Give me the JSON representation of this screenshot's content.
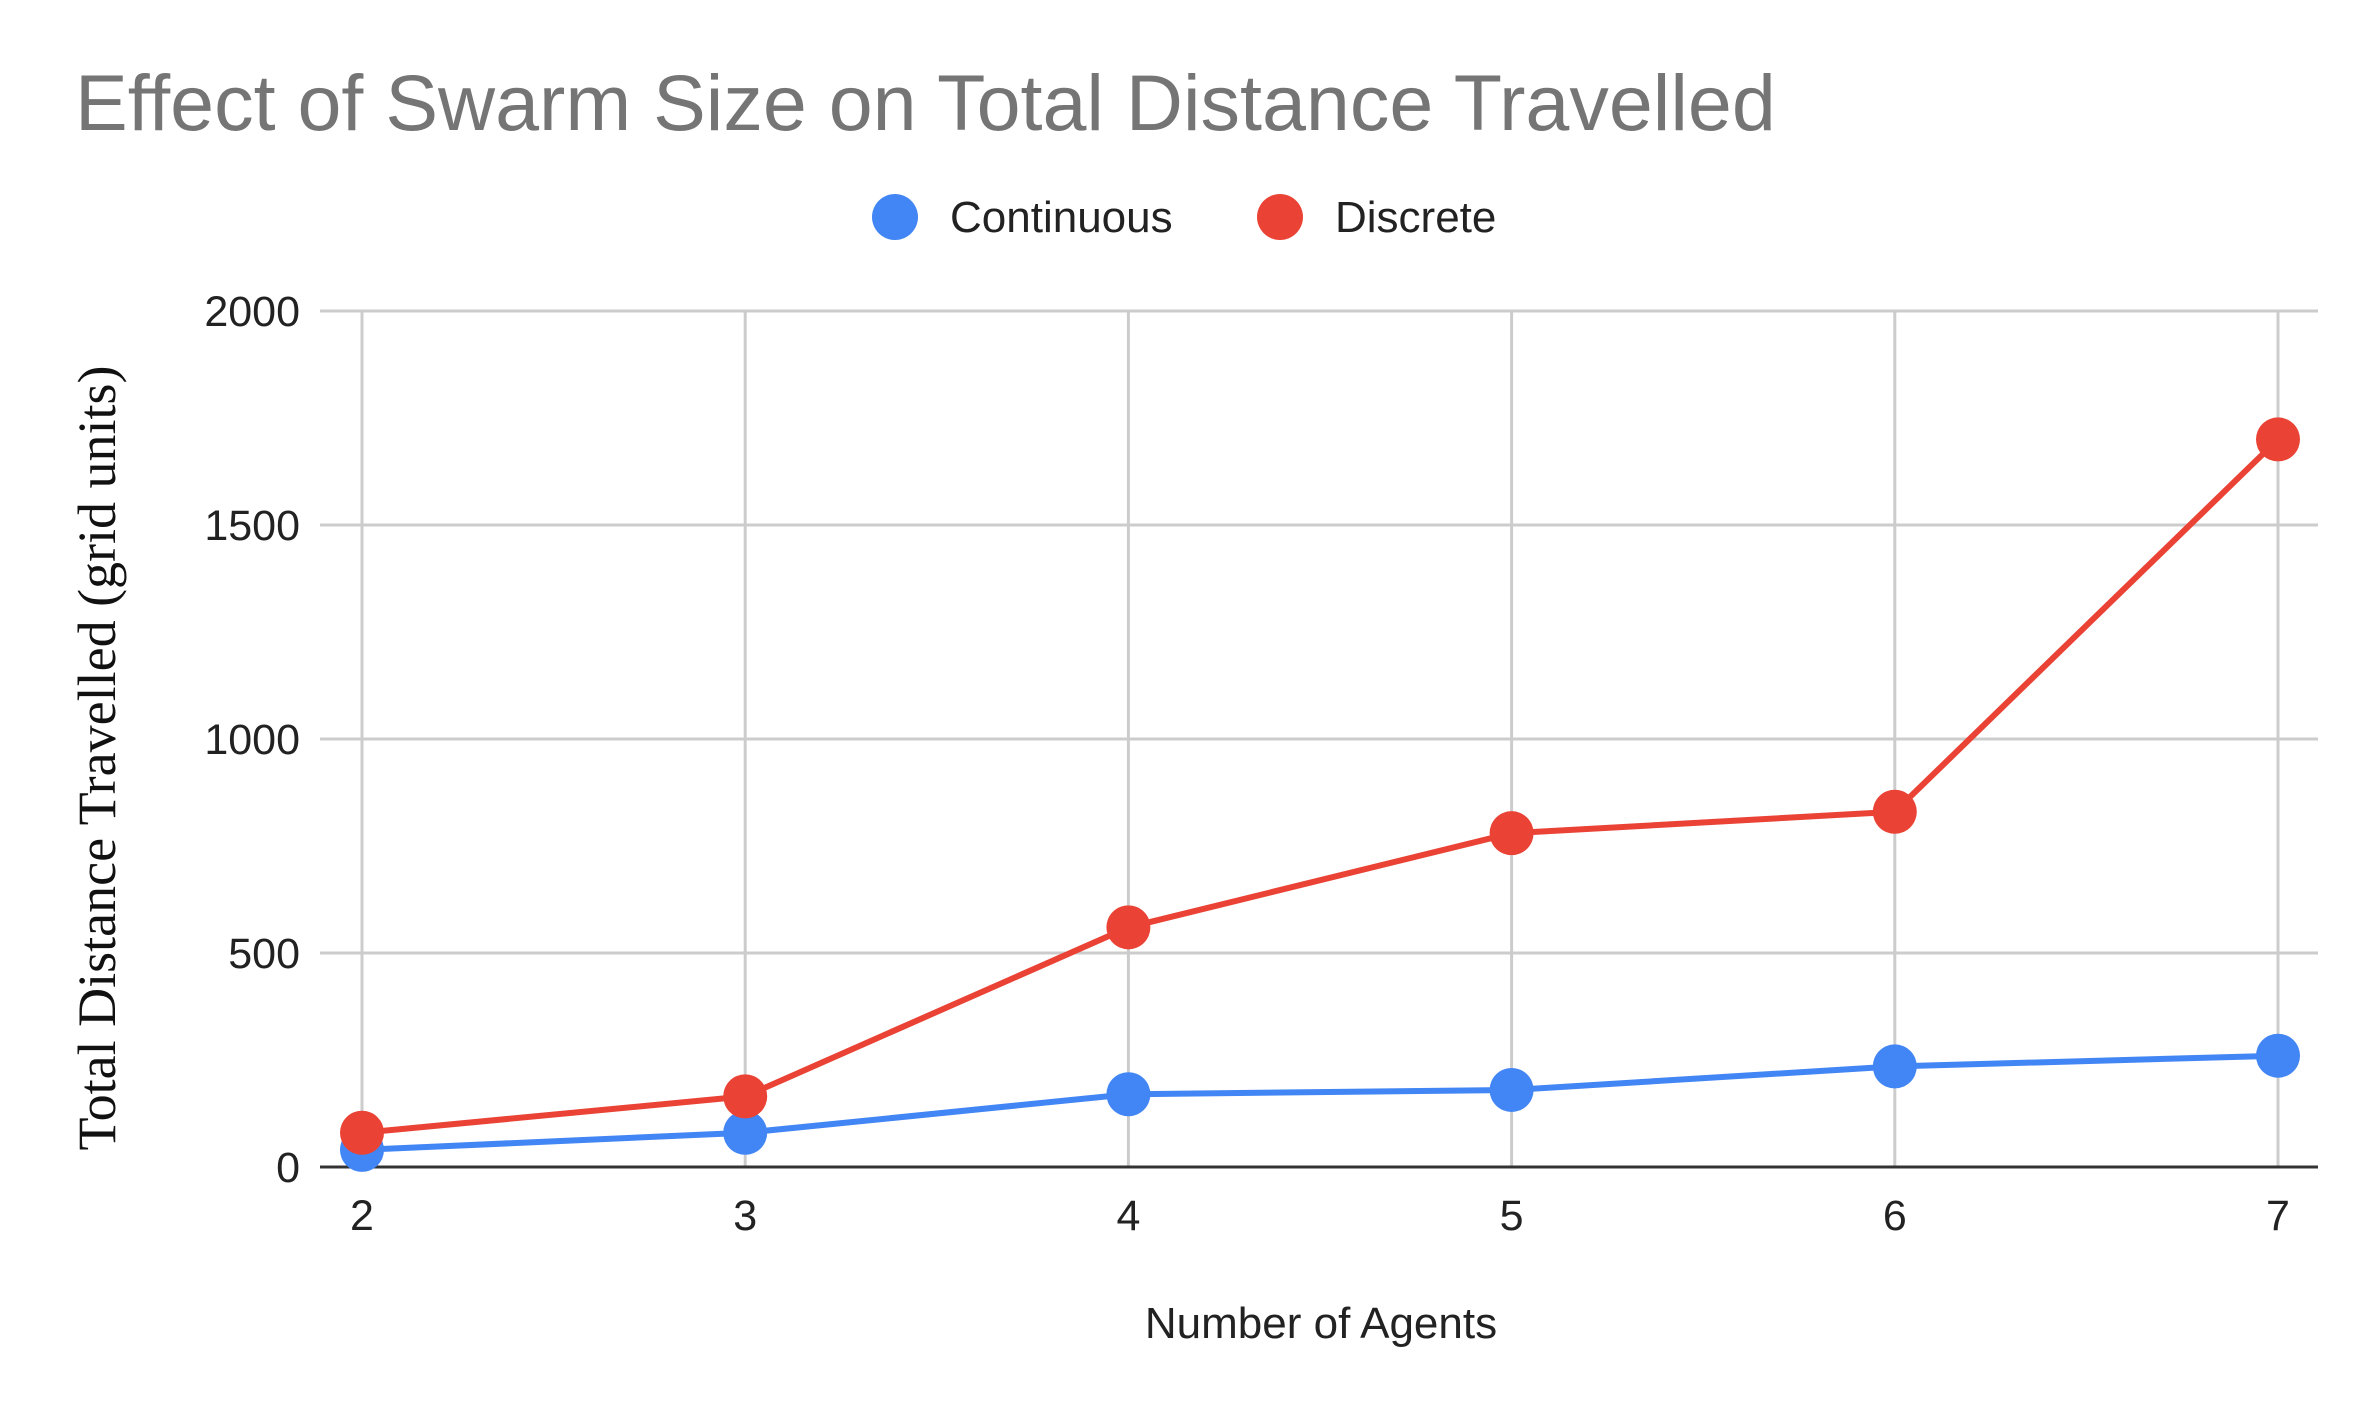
{
  "chart_data": {
    "type": "line",
    "title": "Effect of Swarm Size on Total Distance Travelled",
    "xlabel": "Number of Agents",
    "ylabel": "Total Distance Travelled (grid units)",
    "x": [
      2,
      3,
      4,
      5,
      6,
      7
    ],
    "x_tick_labels": [
      "2",
      "3",
      "4",
      "5",
      "6",
      "7"
    ],
    "ylim": [
      0,
      2000
    ],
    "y_ticks": [
      0,
      500,
      1000,
      1500,
      2000
    ],
    "y_tick_labels": [
      "0",
      "500",
      "1000",
      "1500",
      "2000"
    ],
    "grid": true,
    "legend_position": "top-center",
    "series": [
      {
        "name": "Continuous",
        "color": "#4285F4",
        "values": [
          40,
          80,
          170,
          180,
          235,
          260
        ]
      },
      {
        "name": "Discrete",
        "color": "#EA4335",
        "values": [
          80,
          165,
          560,
          780,
          830,
          1700
        ]
      }
    ]
  }
}
